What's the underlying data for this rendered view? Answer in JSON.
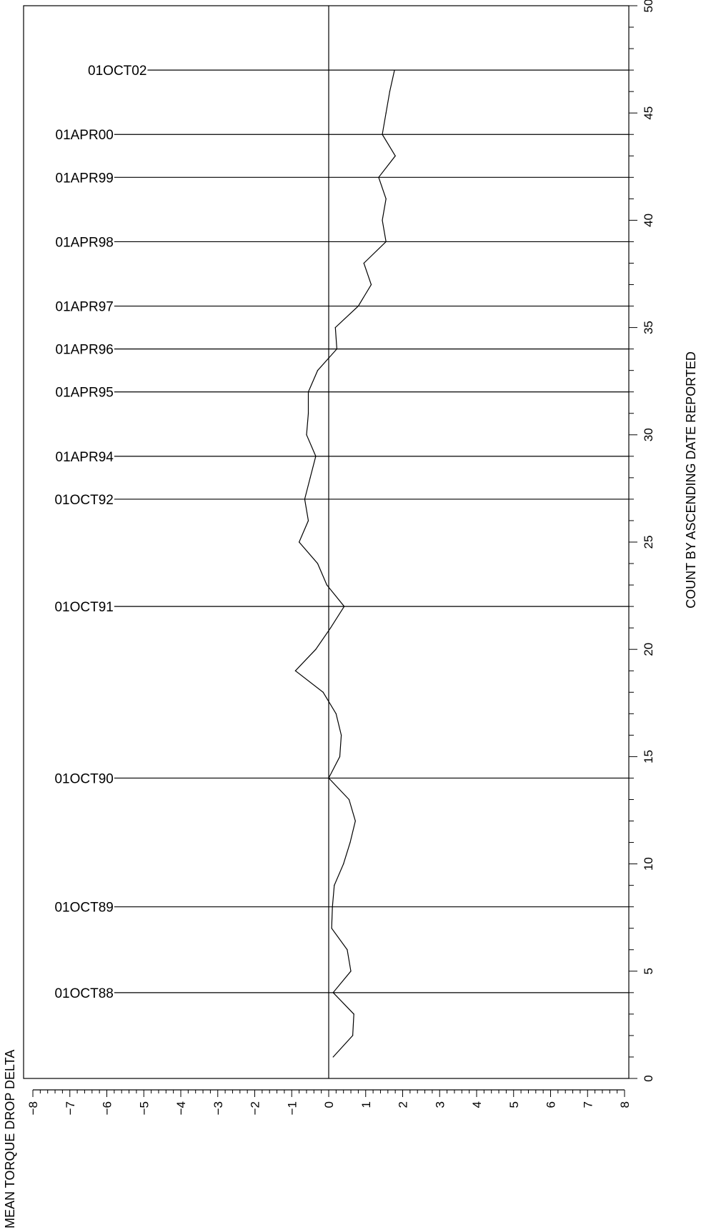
{
  "chart_data": {
    "type": "line",
    "xlabel": "MEAN TORQUE DROP DELTA",
    "ylabel": "COUNT BY ASCENDING DATE REPORTED",
    "xlim": [
      -8,
      8
    ],
    "ylim": [
      0,
      50
    ],
    "x_ticks": [
      "−8",
      "−7",
      "−6",
      "−5",
      "−4",
      "−3",
      "−2",
      "−1",
      "0",
      "1",
      "2",
      "3",
      "4",
      "5",
      "6",
      "7",
      "8"
    ],
    "y_ticks": [
      "0",
      "5",
      "10",
      "15",
      "20",
      "25",
      "30",
      "35",
      "40",
      "45",
      "50"
    ],
    "grid": false,
    "orientation": "rotated-90",
    "series": [
      {
        "points": [
          [
            0.12,
            1
          ],
          [
            0.65,
            2
          ],
          [
            0.68,
            3
          ],
          [
            0.12,
            4
          ],
          [
            0.6,
            5
          ],
          [
            0.5,
            6
          ],
          [
            0.08,
            7
          ],
          [
            0.1,
            8
          ],
          [
            0.15,
            9
          ],
          [
            0.4,
            10
          ],
          [
            0.58,
            11
          ],
          [
            0.72,
            12
          ],
          [
            0.55,
            13
          ],
          [
            0.0,
            14
          ],
          [
            0.3,
            15
          ],
          [
            0.34,
            16
          ],
          [
            0.2,
            17
          ],
          [
            -0.15,
            18
          ],
          [
            -0.9,
            19
          ],
          [
            -0.35,
            20
          ],
          [
            0.05,
            21
          ],
          [
            0.42,
            22
          ],
          [
            -0.05,
            23
          ],
          [
            -0.3,
            24
          ],
          [
            -0.8,
            25
          ],
          [
            -0.55,
            26
          ],
          [
            -0.65,
            27
          ],
          [
            -0.5,
            28
          ],
          [
            -0.35,
            29
          ],
          [
            -0.6,
            30
          ],
          [
            -0.55,
            31
          ],
          [
            -0.55,
            32
          ],
          [
            -0.3,
            33
          ],
          [
            0.22,
            34
          ],
          [
            0.18,
            35
          ],
          [
            0.8,
            36
          ],
          [
            1.15,
            37
          ],
          [
            0.95,
            38
          ],
          [
            1.55,
            39
          ],
          [
            1.45,
            40
          ],
          [
            1.55,
            41
          ],
          [
            1.35,
            42
          ],
          [
            1.8,
            43
          ],
          [
            1.45,
            44
          ],
          [
            1.55,
            45
          ],
          [
            1.65,
            46
          ],
          [
            1.78,
            47
          ]
        ]
      }
    ],
    "vertical_reference_line": 0,
    "events": [
      {
        "label": "01OCT02",
        "count": 47,
        "x_start": -4.9
      },
      {
        "label": "01APR00",
        "count": 44,
        "x_start": -5.8
      },
      {
        "label": "01APR99",
        "count": 42,
        "x_start": -5.8
      },
      {
        "label": "01APR98",
        "count": 39,
        "x_start": -5.8
      },
      {
        "label": "01APR97",
        "count": 36,
        "x_start": -5.8
      },
      {
        "label": "01APR96",
        "count": 34,
        "x_start": -5.8
      },
      {
        "label": "01APR95",
        "count": 32,
        "x_start": -5.8
      },
      {
        "label": "01APR94",
        "count": 29,
        "x_start": -5.8
      },
      {
        "label": "01OCT92",
        "count": 27,
        "x_start": -5.8
      },
      {
        "label": "01OCT91",
        "count": 22,
        "x_start": -5.8
      },
      {
        "label": "01OCT90",
        "count": 14,
        "x_start": -5.8
      },
      {
        "label": "01OCT89",
        "count": 8,
        "x_start": -5.8
      },
      {
        "label": "01OCT88",
        "count": 4,
        "x_start": -5.8
      }
    ]
  }
}
